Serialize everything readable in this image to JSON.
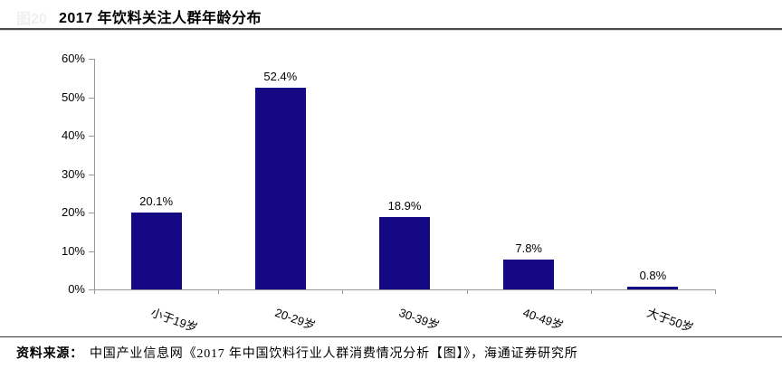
{
  "header": {
    "figure_label": "图20",
    "title": "2017 年饮料关注人群年龄分布"
  },
  "chart_data": {
    "type": "bar",
    "title": "2017 年饮料关注人群年龄分布",
    "categories": [
      "小于19岁",
      "20-29岁",
      "30-39岁",
      "40-49岁",
      "大于50岁"
    ],
    "values": [
      20.1,
      52.4,
      18.9,
      7.8,
      0.8
    ],
    "value_labels": [
      "20.1%",
      "52.4%",
      "18.9%",
      "7.8%",
      "0.8%"
    ],
    "xlabel": "",
    "ylabel": "",
    "ylim": [
      0,
      60
    ],
    "ytick_step": 10,
    "ytick_labels": [
      "0%",
      "10%",
      "20%",
      "30%",
      "40%",
      "50%",
      "60%"
    ],
    "grid": false,
    "legend": "none",
    "bar_color": "#140884",
    "axis_color": "#999999",
    "label_color": "#000000"
  },
  "footer": {
    "source_label": "资料来源：",
    "source_text": "中国产业信息网《2017 年中国饮料行业人群消费情况分析【图】》，海通证券研究所"
  }
}
